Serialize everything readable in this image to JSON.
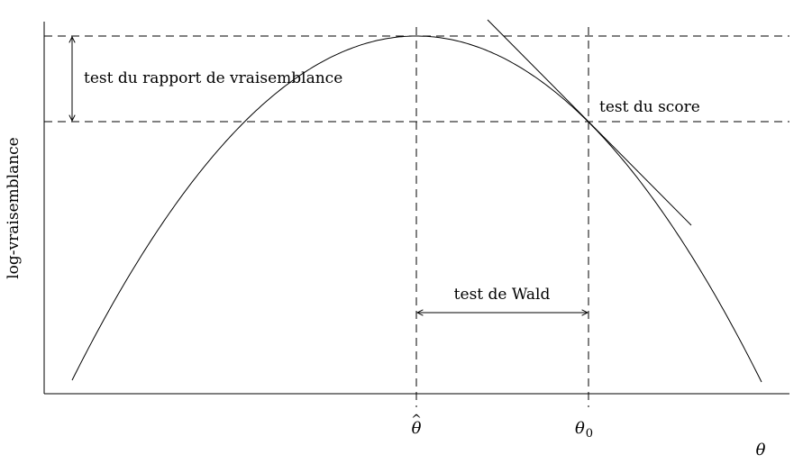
{
  "diagram": {
    "y_axis_label": "log-vraisemblance",
    "x_axis_label": "θ",
    "theta_hat_label": "θ",
    "theta_hat_accent": "^",
    "theta_zero_label": "θ",
    "theta_zero_subscript": "0",
    "lrt_label": "test du rapport de vraisemblance",
    "score_label": "test du score",
    "wald_label": "test de Wald"
  }
}
